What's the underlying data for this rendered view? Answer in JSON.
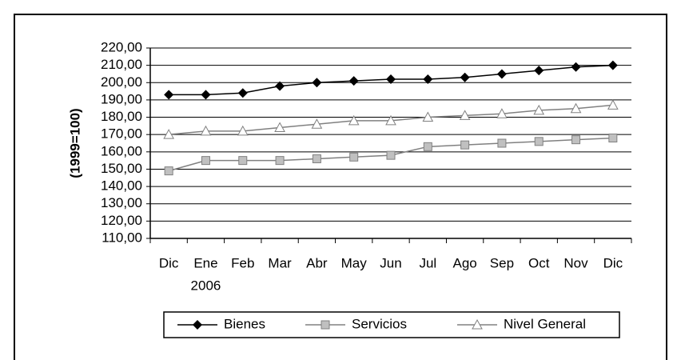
{
  "chart_data": {
    "type": "line",
    "y_axis_label": "(1999=100)",
    "categories": [
      "Dic",
      "Ene",
      "Feb",
      "Mar",
      "Abr",
      "May",
      "Jun",
      "Jul",
      "Ago",
      "Sep",
      "Oct",
      "Nov",
      "Dic"
    ],
    "x_sublabels": [
      null,
      "2006",
      null,
      null,
      null,
      null,
      null,
      null,
      null,
      null,
      null,
      null,
      null
    ],
    "series": [
      {
        "name": "Bienes",
        "color": "#000000",
        "marker": "diamond",
        "values": [
          193,
          193,
          194,
          198,
          200,
          201,
          202,
          202,
          203,
          205,
          207,
          209,
          210
        ]
      },
      {
        "name": "Servicios",
        "color": "#808080",
        "marker": "square",
        "values": [
          149,
          155,
          155,
          155,
          156,
          157,
          158,
          163,
          164,
          165,
          166,
          167,
          168
        ]
      },
      {
        "name": "Nivel General",
        "color": "#808080",
        "marker": "triangle",
        "values": [
          170,
          172,
          172,
          174,
          176,
          178,
          178,
          180,
          181,
          182,
          184,
          185,
          187
        ]
      }
    ],
    "ylim": [
      110,
      220
    ],
    "yticks": [
      {
        "value": 110,
        "label": "110,00"
      },
      {
        "value": 120,
        "label": "120,00"
      },
      {
        "value": 130,
        "label": "130,00"
      },
      {
        "value": 140,
        "label": "140,00"
      },
      {
        "value": 150,
        "label": "150,00"
      },
      {
        "value": 160,
        "label": "160,00"
      },
      {
        "value": 170,
        "label": "170,00"
      },
      {
        "value": 180,
        "label": "180,00"
      },
      {
        "value": 190,
        "label": "190,00"
      },
      {
        "value": 200,
        "label": "200,00"
      },
      {
        "value": 210,
        "label": "210,00"
      },
      {
        "value": 220,
        "label": "220,00"
      }
    ],
    "grid": true,
    "legend": "bottom"
  }
}
